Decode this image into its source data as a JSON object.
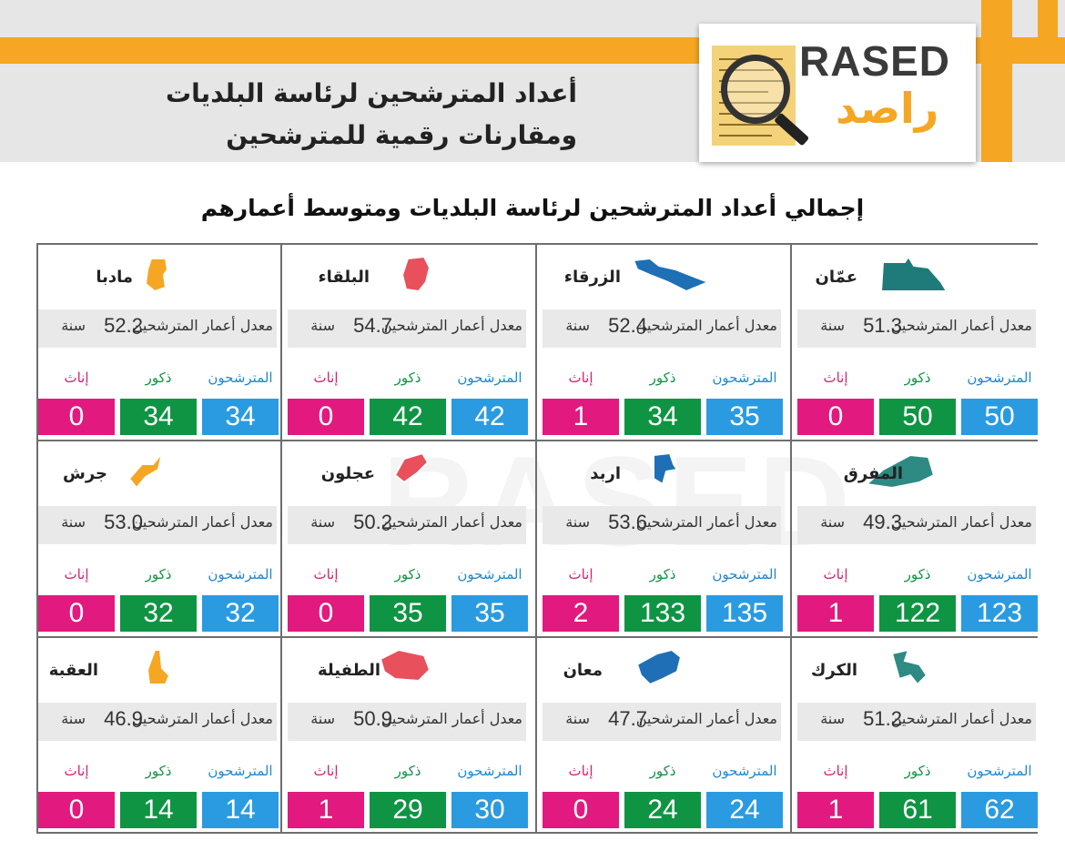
{
  "header": {
    "logo_en": "RASED",
    "logo_ar": "راصد",
    "title_line1": "أعداد المترشحين لرئاسة البلديات",
    "title_line2": "ومقارنات رقمية للمترشحين"
  },
  "subtitle": "إجمالي أعداد المترشحين لرئاسة البلديات ومتوسط أعمارهم",
  "labels": {
    "avg_age": "معدل أعمار المترشحين",
    "unit": "سنة",
    "total": "المترشحون",
    "male": "ذكور",
    "female": "إناث"
  },
  "colors": {
    "orange": "#f5a623",
    "total": "#2a9be0",
    "male": "#0f9443",
    "female": "#e2197e"
  },
  "governorates": [
    {
      "name": "عمّان",
      "avg_age": "51.3",
      "total": "50",
      "male": "50",
      "female": "0",
      "map_color": "#1f7a7a"
    },
    {
      "name": "الزرقاء",
      "avg_age": "52.4",
      "total": "35",
      "male": "34",
      "female": "1",
      "map_color": "#1e6fb5"
    },
    {
      "name": "البلقاء",
      "avg_age": "54.7",
      "total": "42",
      "male": "42",
      "female": "0",
      "map_color": "#e8505b"
    },
    {
      "name": "مادبا",
      "avg_age": "52.2",
      "total": "34",
      "male": "34",
      "female": "0",
      "map_color": "#f5a623"
    },
    {
      "name": "المفرق",
      "avg_age": "49.3",
      "total": "123",
      "male": "122",
      "female": "1",
      "map_color": "#2e8b83"
    },
    {
      "name": "اربد",
      "avg_age": "53.6",
      "total": "135",
      "male": "133",
      "female": "2",
      "map_color": "#1e6fb5"
    },
    {
      "name": "عجلون",
      "avg_age": "50.2",
      "total": "35",
      "male": "35",
      "female": "0",
      "map_color": "#e8505b"
    },
    {
      "name": "جرش",
      "avg_age": "53.0",
      "total": "32",
      "male": "32",
      "female": "0",
      "map_color": "#f5a623"
    },
    {
      "name": "الكرك",
      "avg_age": "51.2",
      "total": "62",
      "male": "61",
      "female": "1",
      "map_color": "#2e8b83"
    },
    {
      "name": "معان",
      "avg_age": "47.7",
      "total": "24",
      "male": "24",
      "female": "0",
      "map_color": "#1e6fb5"
    },
    {
      "name": "الطفيلة",
      "avg_age": "50.9",
      "total": "30",
      "male": "29",
      "female": "1",
      "map_color": "#e8505b"
    },
    {
      "name": "العقبة",
      "avg_age": "46.9",
      "total": "14",
      "male": "14",
      "female": "0",
      "map_color": "#f5a623"
    }
  ]
}
